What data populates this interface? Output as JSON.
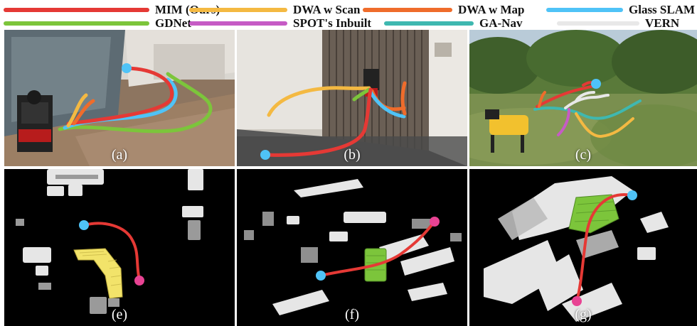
{
  "legend": {
    "items": [
      {
        "label": "MIM (Ours)",
        "color": "#e53935"
      },
      {
        "label": "DWA w Scan",
        "color": "#f4b942"
      },
      {
        "label": "DWA w Map",
        "color": "#ef6c2b"
      },
      {
        "label": "Glass SLAM",
        "color": "#4fc3f7"
      },
      {
        "label": "GDNet",
        "color": "#7cc53b"
      },
      {
        "label": "SPOT's Inbuilt",
        "color": "#c65bc5"
      },
      {
        "label": "GA-Nav",
        "color": "#3fb8b0"
      },
      {
        "label": "VERN",
        "color": "#e8e8e8"
      }
    ]
  },
  "panels": {
    "a": "(a)",
    "b": "(b)",
    "c": "(c)",
    "e": "(e)",
    "f": "(f)",
    "g": "(g)"
  }
}
